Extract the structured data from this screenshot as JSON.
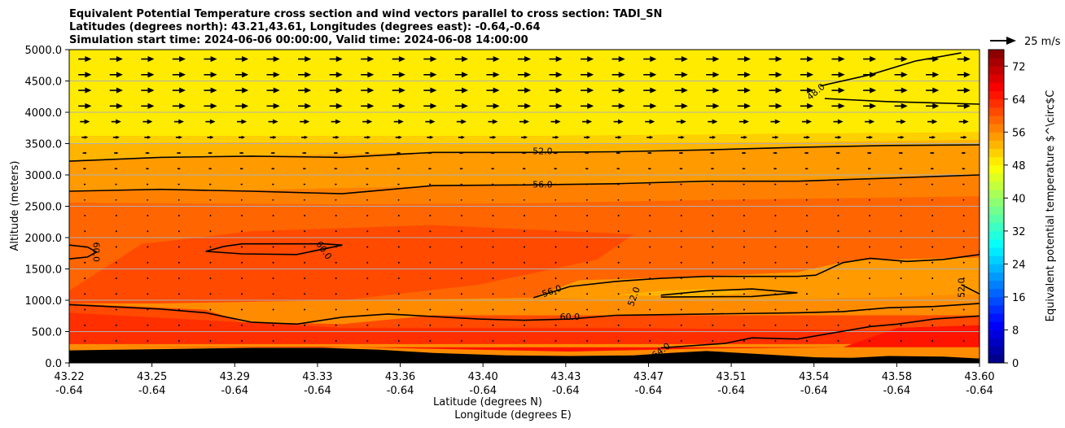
{
  "chart_data": {
    "type": "heatmap",
    "title_lines": [
      "Equivalent Potential Temperature cross section and wind vectors parallel to cross section: TADI_SN",
      "Latitudes (degrees north): 43.21,43.61, Longitudes (degrees east): -0.64,-0.64",
      "Simulation start time: 2024-06-06 00:00:00, Valid time: 2024-06-08 14:00:00"
    ],
    "xlabel": "Latitude (degrees N)",
    "xlabel2": "Longitude (degrees E)",
    "ylabel": "Altitude (meters)",
    "x_ticks": [
      {
        "lat": "43.22",
        "lon": "-0.64"
      },
      {
        "lat": "43.25",
        "lon": "-0.64"
      },
      {
        "lat": "43.29",
        "lon": "-0.64"
      },
      {
        "lat": "43.33",
        "lon": "-0.64"
      },
      {
        "lat": "43.36",
        "lon": "-0.64"
      },
      {
        "lat": "43.40",
        "lon": "-0.64"
      },
      {
        "lat": "43.43",
        "lon": "-0.64"
      },
      {
        "lat": "43.47",
        "lon": "-0.64"
      },
      {
        "lat": "43.51",
        "lon": "-0.64"
      },
      {
        "lat": "43.54",
        "lon": "-0.64"
      },
      {
        "lat": "43.58",
        "lon": "-0.64"
      },
      {
        "lat": "43.60",
        "lon": "-0.64"
      }
    ],
    "xlim": [
      0,
      1
    ],
    "ylim": [
      0,
      5000
    ],
    "y_ticks": [
      {
        "value": 0,
        "label": "0.0"
      },
      {
        "value": 500,
        "label": "500.0"
      },
      {
        "value": 1000,
        "label": "1000.0"
      },
      {
        "value": 1500,
        "label": "1500.0"
      },
      {
        "value": 2000,
        "label": "2000.0"
      },
      {
        "value": 2500,
        "label": "2500.0"
      },
      {
        "value": 3000,
        "label": "3000.0"
      },
      {
        "value": 3500,
        "label": "3500.0"
      },
      {
        "value": 4000,
        "label": "4000.0"
      },
      {
        "value": 4500,
        "label": "4500.0"
      },
      {
        "value": 5000,
        "label": "5000.0"
      }
    ],
    "grid": "horizontal",
    "colorbar": {
      "label": "Equivalent potential temperature $^\\circ$C",
      "range": [
        0,
        76
      ],
      "step": 2,
      "ticks": [
        {
          "value": 0,
          "label": "0"
        },
        {
          "value": 8,
          "label": "8"
        },
        {
          "value": 16,
          "label": "16"
        },
        {
          "value": 24,
          "label": "24"
        },
        {
          "value": 32,
          "label": "32"
        },
        {
          "value": 40,
          "label": "40"
        },
        {
          "value": 48,
          "label": "48"
        },
        {
          "value": 56,
          "label": "56"
        },
        {
          "value": 64,
          "label": "64"
        },
        {
          "value": 72,
          "label": "72"
        }
      ],
      "colormap": "jet"
    },
    "quiver_key": {
      "label": "25 m/s",
      "speed": 25
    },
    "fill_layers": [
      {
        "value": 48,
        "points": [
          [
            0,
            3620
          ],
          [
            0.5,
            3620
          ],
          [
            1,
            3680
          ],
          [
            1,
            5000
          ],
          [
            0,
            5000
          ]
        ]
      },
      {
        "value": 50,
        "points": [
          [
            0,
            3500
          ],
          [
            0.2,
            3520
          ],
          [
            0.5,
            3500
          ],
          [
            0.8,
            3520
          ],
          [
            1,
            3560
          ],
          [
            1,
            3680
          ],
          [
            0.5,
            3620
          ],
          [
            0,
            3620
          ]
        ]
      },
      {
        "value": 52,
        "points": [
          [
            0,
            3220
          ],
          [
            0.2,
            3300
          ],
          [
            0.4,
            3360
          ],
          [
            0.6,
            3370
          ],
          [
            0.8,
            3430
          ],
          [
            1,
            3480
          ],
          [
            1,
            3560
          ],
          [
            0.8,
            3520
          ],
          [
            0.5,
            3500
          ],
          [
            0.2,
            3520
          ],
          [
            0,
            3500
          ]
        ]
      },
      {
        "value": 54,
        "points": [
          [
            0,
            2750
          ],
          [
            0.2,
            2760
          ],
          [
            0.4,
            2820
          ],
          [
            0.6,
            2850
          ],
          [
            0.8,
            2900
          ],
          [
            1,
            3000
          ],
          [
            1,
            3480
          ],
          [
            0.8,
            3430
          ],
          [
            0.6,
            3370
          ],
          [
            0.4,
            3360
          ],
          [
            0.2,
            3300
          ],
          [
            0,
            3220
          ]
        ]
      },
      {
        "value": 56,
        "points": [
          [
            0,
            2560
          ],
          [
            0.3,
            2530
          ],
          [
            0.5,
            2550
          ],
          [
            0.7,
            2600
          ],
          [
            1,
            2660
          ],
          [
            1,
            3000
          ],
          [
            0.8,
            2900
          ],
          [
            0.6,
            2850
          ],
          [
            0.4,
            2820
          ],
          [
            0.2,
            2760
          ],
          [
            0,
            2750
          ]
        ]
      },
      {
        "value": 58,
        "points": [
          [
            0,
            1000
          ],
          [
            0.3,
            1000
          ],
          [
            0.55,
            1050
          ],
          [
            0.8,
            1150
          ],
          [
            1,
            1200
          ],
          [
            1,
            2660
          ],
          [
            0.7,
            2600
          ],
          [
            0.5,
            2550
          ],
          [
            0.3,
            2530
          ],
          [
            0,
            2560
          ]
        ]
      }
    ],
    "fill_patches": [
      {
        "value": 60,
        "points": [
          [
            0,
            1150
          ],
          [
            0.08,
            1900
          ],
          [
            0.2,
            2100
          ],
          [
            0.4,
            2200
          ],
          [
            0.62,
            2050
          ],
          [
            0.58,
            1650
          ],
          [
            0.45,
            1250
          ],
          [
            0.3,
            1000
          ],
          [
            0.1,
            950
          ],
          [
            0,
            950
          ]
        ]
      },
      {
        "value": 54,
        "points": [
          [
            0.51,
            1050
          ],
          [
            0.56,
            1320
          ],
          [
            0.7,
            1380
          ],
          [
            0.8,
            1450
          ],
          [
            0.86,
            1640
          ],
          [
            1,
            1680
          ],
          [
            1,
            1100
          ],
          [
            0.92,
            1060
          ],
          [
            0.75,
            1000
          ],
          [
            0.6,
            1000
          ]
        ]
      },
      {
        "value": 52,
        "points": [
          [
            0.6,
            1080
          ],
          [
            0.65,
            1150
          ],
          [
            0.7,
            1180
          ],
          [
            0.75,
            1130
          ],
          [
            0.7,
            1060
          ]
        ]
      },
      {
        "value": 60,
        "points": [
          [
            0,
            950
          ],
          [
            0.15,
            850
          ],
          [
            0.19,
            650
          ],
          [
            0.3,
            620
          ],
          [
            0.4,
            760
          ],
          [
            0.62,
            760
          ],
          [
            0.75,
            760
          ],
          [
            0.87,
            760
          ],
          [
            1,
            760
          ],
          [
            1,
            520
          ],
          [
            0,
            520
          ]
        ]
      },
      {
        "value": 62,
        "points": [
          [
            0,
            800
          ],
          [
            0.3,
            560
          ],
          [
            0.6,
            560
          ],
          [
            0.9,
            520
          ],
          [
            1,
            520
          ],
          [
            1,
            300
          ],
          [
            0,
            300
          ]
        ]
      },
      {
        "value": 64,
        "points": [
          [
            0,
            250
          ],
          [
            0.28,
            260
          ],
          [
            0.55,
            180
          ],
          [
            0.7,
            230
          ],
          [
            0.85,
            250
          ],
          [
            0.91,
            560
          ],
          [
            1,
            600
          ],
          [
            1,
            250
          ]
        ]
      },
      {
        "value": 48,
        "points": [
          [
            0.91,
            5000
          ],
          [
            0.98,
            4700
          ],
          [
            1,
            4650
          ],
          [
            1,
            5000
          ]
        ]
      }
    ],
    "terrain": [
      [
        0,
        200
      ],
      [
        0.1,
        220
      ],
      [
        0.2,
        240
      ],
      [
        0.28,
        240
      ],
      [
        0.34,
        210
      ],
      [
        0.4,
        160
      ],
      [
        0.48,
        120
      ],
      [
        0.55,
        110
      ],
      [
        0.62,
        120
      ],
      [
        0.66,
        160
      ],
      [
        0.7,
        190
      ],
      [
        0.76,
        140
      ],
      [
        0.82,
        90
      ],
      [
        0.86,
        80
      ],
      [
        0.9,
        110
      ],
      [
        0.96,
        100
      ],
      [
        1,
        70
      ]
    ],
    "contours": [
      {
        "level": "48.0",
        "points": [
          [
            0.825,
            4420
          ],
          [
            0.88,
            4600
          ],
          [
            0.93,
            4820
          ],
          [
            0.98,
            4950
          ]
        ],
        "label_at": [
          0.82,
          4330
        ],
        "label_angle": -40
      },
      {
        "level": "48.0",
        "points": [
          [
            0.83,
            4220
          ],
          [
            0.9,
            4170
          ],
          [
            0.95,
            4150
          ],
          [
            1,
            4130
          ]
        ],
        "label_at": null,
        "label_angle": 0
      },
      {
        "level": "52.0",
        "points": [
          [
            0,
            3220
          ],
          [
            0.1,
            3280
          ],
          [
            0.2,
            3300
          ],
          [
            0.3,
            3280
          ],
          [
            0.4,
            3360
          ],
          [
            0.5,
            3360
          ],
          [
            0.6,
            3370
          ],
          [
            0.7,
            3400
          ],
          [
            0.8,
            3440
          ],
          [
            0.9,
            3470
          ],
          [
            1,
            3480
          ]
        ],
        "label_at": [
          0.52,
          3380
        ],
        "label_angle": 0
      },
      {
        "level": "56.0",
        "points": [
          [
            0,
            2740
          ],
          [
            0.1,
            2770
          ],
          [
            0.2,
            2740
          ],
          [
            0.3,
            2700
          ],
          [
            0.4,
            2830
          ],
          [
            0.5,
            2840
          ],
          [
            0.6,
            2860
          ],
          [
            0.7,
            2900
          ],
          [
            0.8,
            2900
          ],
          [
            0.9,
            2950
          ],
          [
            1,
            3000
          ]
        ],
        "label_at": [
          0.52,
          2850
        ],
        "label_angle": 0
      },
      {
        "level": "60.0",
        "points": [
          [
            0.15,
            1780
          ],
          [
            0.17,
            1860
          ],
          [
            0.19,
            1900
          ],
          [
            0.28,
            1900
          ],
          [
            0.3,
            1880
          ],
          [
            0.25,
            1730
          ],
          [
            0.19,
            1740
          ],
          [
            0.15,
            1780
          ]
        ],
        "label_at": [
          0.28,
          1800
        ],
        "label_angle": 55
      },
      {
        "level": "60.0",
        "points": [
          [
            0,
            1880
          ],
          [
            0.02,
            1850
          ],
          [
            0.03,
            1770
          ],
          [
            0.02,
            1690
          ],
          [
            0,
            1660
          ]
        ],
        "label_at": [
          0.03,
          1770
        ],
        "label_angle": 90
      },
      {
        "level": "56.0",
        "points": [
          [
            0.51,
            1040
          ],
          [
            0.55,
            1220
          ],
          [
            0.6,
            1300
          ],
          [
            0.65,
            1350
          ],
          [
            0.7,
            1380
          ],
          [
            0.75,
            1380
          ],
          [
            0.8,
            1380
          ],
          [
            0.82,
            1400
          ],
          [
            0.85,
            1600
          ],
          [
            0.88,
            1670
          ],
          [
            0.92,
            1620
          ],
          [
            0.96,
            1650
          ],
          [
            1,
            1730
          ],
          [
            1,
            1800
          ]
        ],
        "label_at": [
          0.53,
          1150
        ],
        "label_angle": -20
      },
      {
        "level": "52.0",
        "points": [
          [
            0.65,
            1080
          ],
          [
            0.7,
            1150
          ],
          [
            0.75,
            1180
          ],
          [
            0.8,
            1120
          ],
          [
            0.75,
            1060
          ],
          [
            0.65,
            1050
          ]
        ],
        "label_at": [
          0.62,
          1060
        ],
        "label_angle": -70
      },
      {
        "level": "52.0",
        "points": [
          [
            1,
            1100
          ],
          [
            0.98,
            1250
          ]
        ],
        "label_at": [
          0.98,
          1200
        ],
        "label_angle": -90
      },
      {
        "level": "60.0",
        "points": [
          [
            0,
            930
          ],
          [
            0.1,
            860
          ],
          [
            0.15,
            800
          ],
          [
            0.2,
            650
          ],
          [
            0.25,
            620
          ],
          [
            0.3,
            730
          ],
          [
            0.35,
            780
          ],
          [
            0.45,
            700
          ],
          [
            0.5,
            680
          ],
          [
            0.55,
            700
          ],
          [
            0.6,
            760
          ],
          [
            0.7,
            780
          ],
          [
            0.8,
            800
          ],
          [
            0.85,
            820
          ],
          [
            0.9,
            880
          ],
          [
            0.95,
            900
          ],
          [
            1,
            950
          ]
        ],
        "label_at": [
          0.55,
          740
        ],
        "label_angle": 0
      },
      {
        "level": "64.0",
        "points": [
          [
            0.65,
            240
          ],
          [
            0.72,
            310
          ],
          [
            0.75,
            400
          ],
          [
            0.8,
            380
          ],
          [
            0.84,
            480
          ],
          [
            0.88,
            580
          ],
          [
            0.91,
            620
          ],
          [
            0.95,
            700
          ],
          [
            1,
            750
          ]
        ],
        "label_at": [
          0.65,
          200
        ],
        "label_angle": -35
      }
    ],
    "vectors": {
      "rows": [
        {
          "y": 4850,
          "u": 12,
          "w": 0
        },
        {
          "y": 4600,
          "u": 12,
          "w": 0
        },
        {
          "y": 4350,
          "u": 12,
          "w": 0
        },
        {
          "y": 4100,
          "u": 12,
          "w": 0
        },
        {
          "y": 3850,
          "u": 9,
          "w": 0
        },
        {
          "y": 3600,
          "u": 6,
          "w": 0
        },
        {
          "y": 3350,
          "u": 4,
          "w": 0
        },
        {
          "y": 3100,
          "u": 3,
          "w": 0
        },
        {
          "y": 2850,
          "u": 2,
          "w": 0
        },
        {
          "y": 2600,
          "u": 1.5,
          "w": 0
        },
        {
          "y": 2350,
          "u": 1.2,
          "w": 0
        },
        {
          "y": 2100,
          "u": 1,
          "w": 0
        },
        {
          "y": 1850,
          "u": 1,
          "w": 0
        },
        {
          "y": 1600,
          "u": 0.8,
          "w": 0
        },
        {
          "y": 1350,
          "u": 0.8,
          "w": 0
        },
        {
          "y": 1100,
          "u": 0.8,
          "w": 0
        },
        {
          "y": 850,
          "u": -0.8,
          "w": 0
        },
        {
          "y": 600,
          "u": -0.8,
          "w": 0
        },
        {
          "y": 350,
          "u": -0.8,
          "w": 0
        }
      ],
      "columns": 29
    }
  }
}
